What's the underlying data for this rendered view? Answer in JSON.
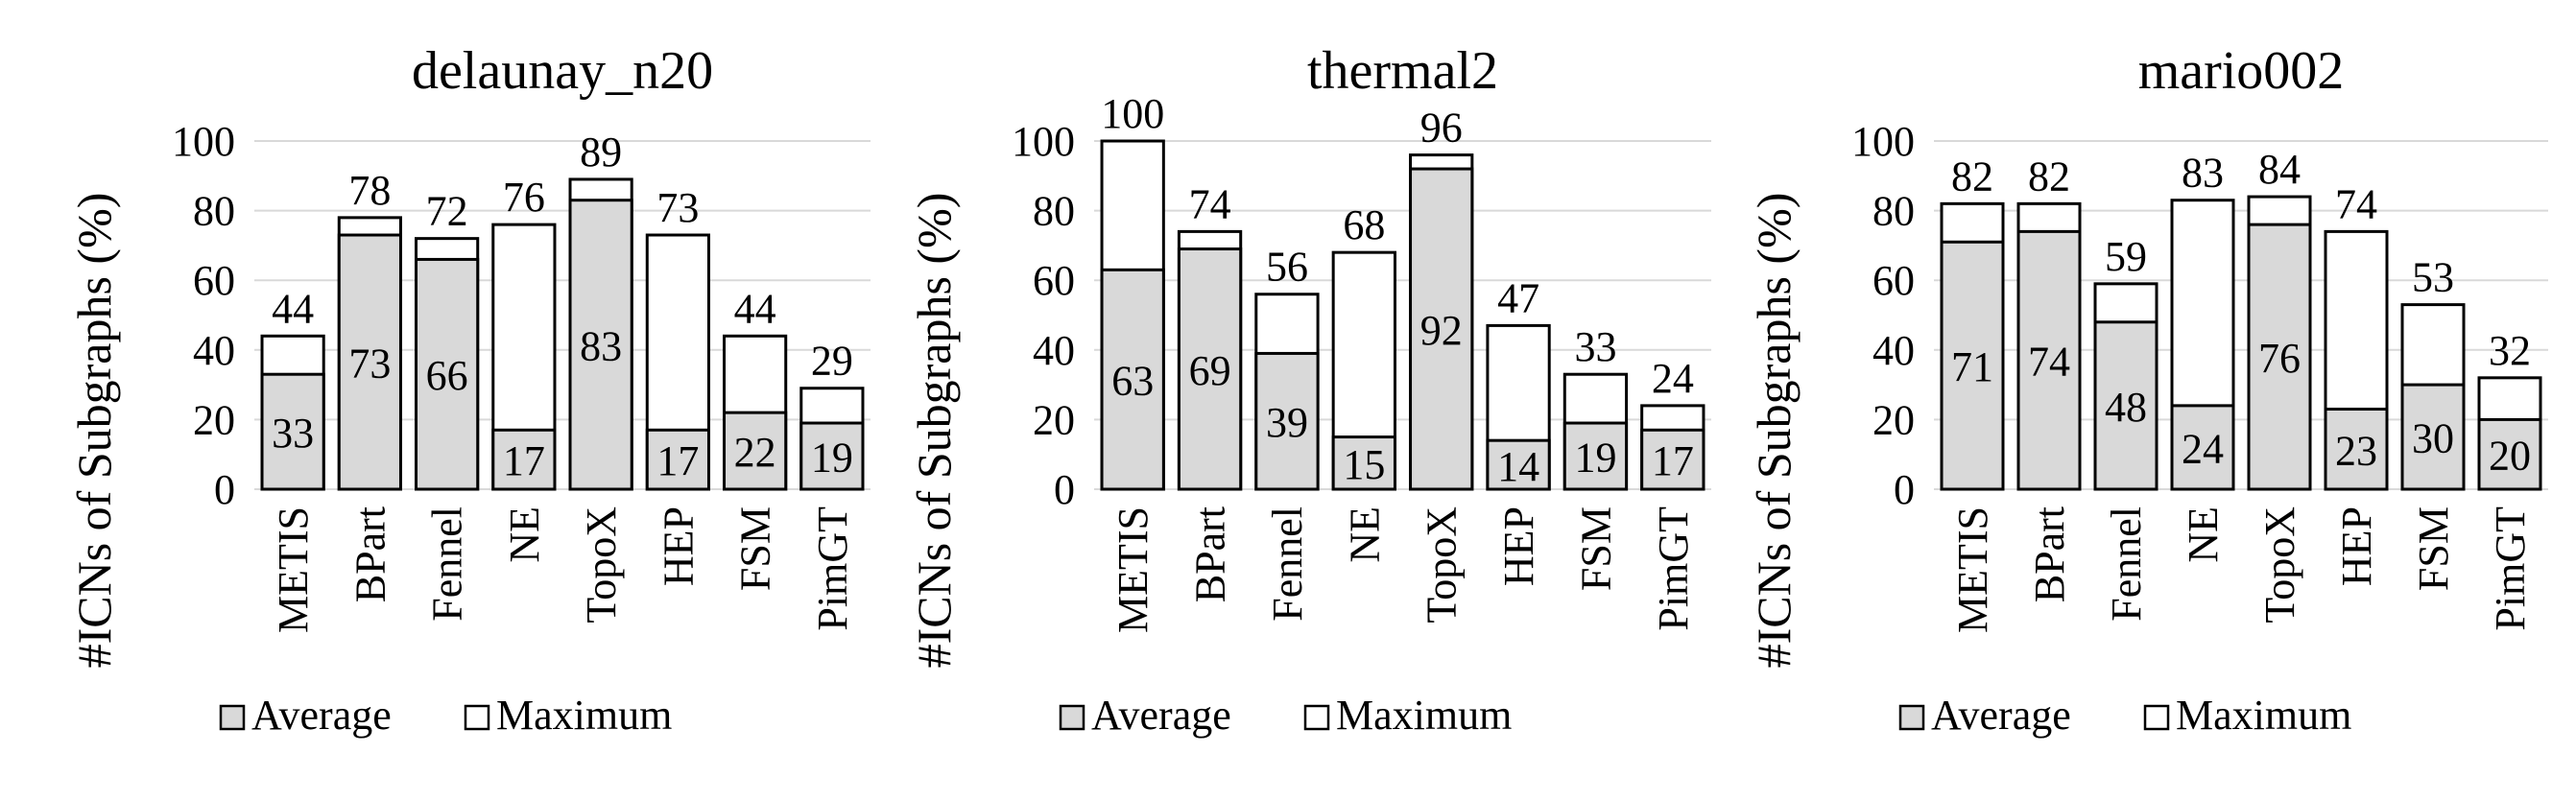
{
  "legend": {
    "average_label": "Average",
    "maximum_label": "Maximum"
  },
  "colors": {
    "average_fill": "#d9d9d9",
    "maximum_fill": "#ffffff",
    "stroke": "#000000",
    "grid": "#d9d9d9"
  },
  "chart_data": [
    {
      "type": "bar",
      "title": "delaunay_n20",
      "ylabel": "#ICNs of Subgraphs (%)",
      "xlabel": "",
      "ylim": [
        0,
        100
      ],
      "yticks": [
        0,
        20,
        40,
        60,
        80,
        100
      ],
      "grid": true,
      "legend_position": "bottom",
      "categories": [
        "METIS",
        "BPart",
        "Fennel",
        "NE",
        "TopoX",
        "HEP",
        "FSM",
        "PimGT"
      ],
      "series": [
        {
          "name": "Average",
          "values": [
            33,
            73,
            66,
            17,
            83,
            17,
            22,
            19
          ]
        },
        {
          "name": "Maximum",
          "values": [
            44,
            78,
            72,
            76,
            89,
            73,
            44,
            29
          ]
        }
      ]
    },
    {
      "type": "bar",
      "title": "thermal2",
      "ylabel": "#ICNs of Subgraphs (%)",
      "xlabel": "",
      "ylim": [
        0,
        100
      ],
      "yticks": [
        0,
        20,
        40,
        60,
        80,
        100
      ],
      "grid": true,
      "legend_position": "bottom",
      "categories": [
        "METIS",
        "BPart",
        "Fennel",
        "NE",
        "TopoX",
        "HEP",
        "FSM",
        "PimGT"
      ],
      "series": [
        {
          "name": "Average",
          "values": [
            63,
            69,
            39,
            15,
            92,
            14,
            19,
            17
          ]
        },
        {
          "name": "Maximum",
          "values": [
            100,
            74,
            56,
            68,
            96,
            47,
            33,
            24
          ]
        }
      ]
    },
    {
      "type": "bar",
      "title": "mario002",
      "ylabel": "#ICNs of Subgraphs (%)",
      "xlabel": "",
      "ylim": [
        0,
        100
      ],
      "yticks": [
        0,
        20,
        40,
        60,
        80,
        100
      ],
      "grid": true,
      "legend_position": "bottom",
      "categories": [
        "METIS",
        "BPart",
        "Fennel",
        "NE",
        "TopoX",
        "HEP",
        "FSM",
        "PimGT"
      ],
      "series": [
        {
          "name": "Average",
          "values": [
            71,
            74,
            48,
            24,
            76,
            23,
            30,
            20
          ]
        },
        {
          "name": "Maximum",
          "values": [
            82,
            82,
            59,
            83,
            84,
            74,
            53,
            32
          ]
        }
      ]
    }
  ]
}
